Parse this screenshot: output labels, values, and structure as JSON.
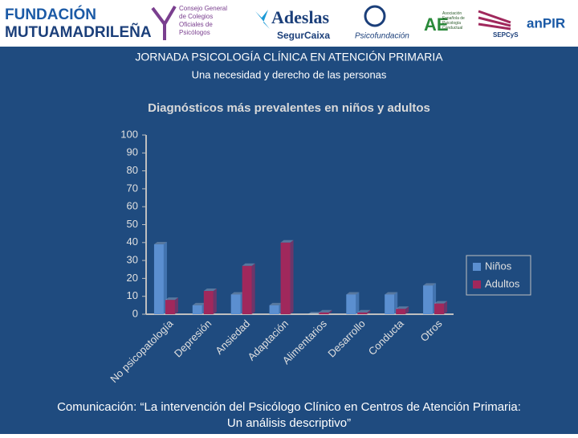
{
  "header": {
    "logos": [
      "FUNDACIÓN",
      "MUTUAMADRILEÑA",
      "Consejo General de Colegios Oficiales de Psicólogos",
      "Adeslas",
      "SegurCaixa",
      "Psicofundación",
      "Asociación Española de Psicología Conductual",
      "SEPCyS",
      "anPIR"
    ]
  },
  "slide": {
    "title": "JORNADA PSICOLOGÍA CLÍNICA EN ATENCIÓN PRIMARIA",
    "subtitle": "Una necesidad y derecho de las personas",
    "footer": [
      "Comunicación: “La intervención del Psicólogo Clínico en Centros de Atención Primaria:",
      "Un análisis descriptivo”"
    ]
  },
  "chart_data": {
    "type": "bar",
    "title": "Diagnósticos más prevalentes en niños y adultos",
    "categories": [
      "No psicopatología",
      "Depresión",
      "Ansiedad",
      "Adaptación",
      "Alimentarios",
      "Desarrollo",
      "Conducta",
      "Otros"
    ],
    "series": [
      {
        "name": "Niños",
        "color": "#5b8fd0",
        "values": [
          39,
          5,
          11,
          5,
          0,
          11,
          11,
          16
        ]
      },
      {
        "name": "Adultos",
        "color": "#a0285c",
        "values": [
          8,
          13,
          27,
          40,
          1,
          1,
          3,
          6
        ]
      }
    ],
    "ylim": [
      0,
      100
    ],
    "yticks": [
      0,
      10,
      20,
      30,
      40,
      50,
      60,
      70,
      80,
      90,
      100
    ],
    "grid": false,
    "legend": "right"
  }
}
